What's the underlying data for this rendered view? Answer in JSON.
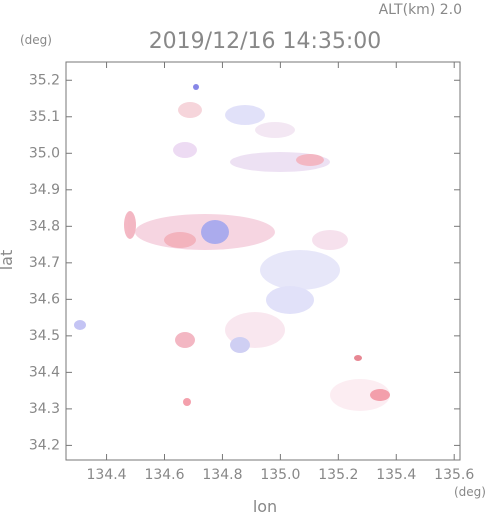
{
  "chart_data": {
    "type": "map",
    "title": "2019/12/16 14:35:00",
    "subtitle": "ALT(km) 2.0",
    "y_unit": "(deg)",
    "x_unit": "(deg)",
    "xlabel": "lon",
    "ylabel": "lat",
    "xlim": [
      134.26,
      135.62
    ],
    "xticks": [
      134.4,
      134.6,
      134.8,
      {
        "value": 135,
        "label": "135.0"
      },
      135.2,
      135.4,
      135.6
    ],
    "ylim": [
      34.16,
      35.25
    ],
    "yticks": [
      34.2,
      34.3,
      34.4,
      34.5,
      34.6,
      34.7,
      34.8,
      34.9,
      {
        "value": 35,
        "label": "35.0"
      },
      35.1,
      35.2
    ]
  }
}
